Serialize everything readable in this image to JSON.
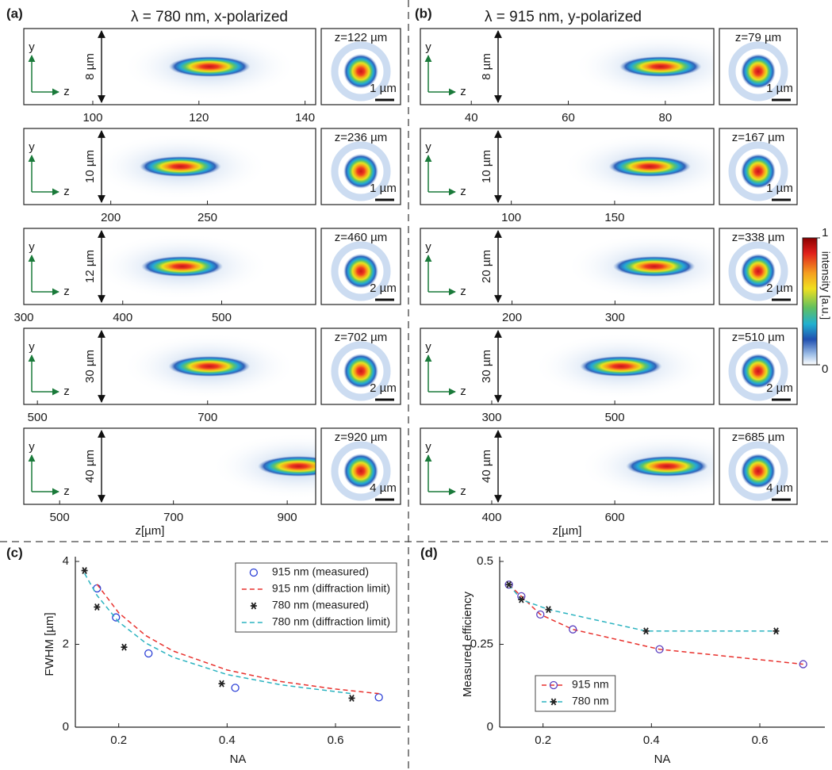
{
  "chart_data": [
    {
      "type": "beam-profile",
      "panel": "(a)",
      "title": "λ = 780 nm, x-polarized",
      "xlabel": "z[µm]",
      "axes_icon": [
        "y",
        "z"
      ],
      "rows": [
        {
          "xlim": [
            87,
            142
          ],
          "xticks": [
            100,
            120,
            140
          ],
          "ylabel": "8 µm",
          "peak": {
            "value": 122,
            "label": "z=122 µm"
          },
          "scalebar": "1 µm"
        },
        {
          "xlim": [
            155,
            306
          ],
          "xticks": [
            200,
            250
          ],
          "ylabel": "10 µm",
          "peak": {
            "value": 236,
            "label": "z=236 µm"
          },
          "scalebar": "1 µm"
        },
        {
          "xlim": [
            300,
            595
          ],
          "xticks": [
            300,
            400,
            500
          ],
          "ylabel": "12 µm",
          "peak": {
            "value": 460,
            "label": "z=460 µm"
          },
          "scalebar": "2 µm"
        },
        {
          "xlim": [
            484,
            827
          ],
          "xticks": [
            500,
            700
          ],
          "ylabel": "30 µm",
          "peak": {
            "value": 702,
            "label": "z=702 µm"
          },
          "scalebar": "2 µm"
        },
        {
          "xlim": [
            437,
            950
          ],
          "xticks": [
            500,
            700,
            900
          ],
          "ylabel": "40 µm",
          "peak": {
            "value": 920,
            "label": "z=920 µm"
          },
          "scalebar": "4 µm"
        }
      ]
    },
    {
      "type": "beam-profile",
      "panel": "(b)",
      "title": "λ = 915 nm, y-polarized",
      "xlabel": "z[µm]",
      "axes_icon": [
        "y",
        "z"
      ],
      "rows": [
        {
          "xlim": [
            29.5,
            90
          ],
          "xticks": [
            40,
            60,
            80
          ],
          "ylabel": "8 µm",
          "peak": {
            "value": 79,
            "label": "z=79 µm"
          },
          "scalebar": "1 µm"
        },
        {
          "xlim": [
            56,
            198
          ],
          "xticks": [
            100,
            150
          ],
          "ylabel": "10 µm",
          "peak": {
            "value": 167,
            "label": "z=167 µm"
          },
          "scalebar": "1 µm"
        },
        {
          "xlim": [
            111,
            396
          ],
          "xticks": [
            200,
            300
          ],
          "ylabel": "20 µm",
          "peak": {
            "value": 338,
            "label": "z=338 µm"
          },
          "scalebar": "2 µm"
        },
        {
          "xlim": [
            184,
            661
          ],
          "xticks": [
            300,
            500
          ],
          "ylabel": "30 µm",
          "peak": {
            "value": 510,
            "label": "z=510 µm"
          },
          "scalebar": "2 µm"
        },
        {
          "xlim": [
            284,
            761
          ],
          "xticks": [
            400,
            600
          ],
          "ylabel": "40 µm",
          "peak": {
            "value": 685,
            "label": "z=685 µm"
          },
          "scalebar": "4 µm"
        }
      ],
      "colorbar": {
        "label": "intensity [a.u.]",
        "lim": [
          0,
          1
        ],
        "ticks": [
          0,
          1
        ]
      }
    },
    {
      "type": "scatter-line",
      "panel": "(c)",
      "xlabel": "NA",
      "ylabel": "FWHM [µm]",
      "xlim": [
        0.12,
        0.72
      ],
      "ylim": [
        0,
        4
      ],
      "xticks": [
        0.2,
        0.4,
        0.6
      ],
      "yticks": [
        0,
        2,
        4
      ],
      "legend": "upper right",
      "series": [
        {
          "name": "915 nm (measured)",
          "color": "#2b3fd6",
          "marker": "circle",
          "x": [
            0.16,
            0.195,
            0.255,
            0.415,
            0.68
          ],
          "values": [
            3.35,
            2.65,
            1.78,
            0.95,
            0.72
          ]
        },
        {
          "name": "915 nm (diffraction limit)",
          "color": "#e8312d",
          "dashed": true,
          "x": [
            0.16,
            0.2,
            0.25,
            0.3,
            0.4,
            0.5,
            0.6,
            0.68
          ],
          "values": [
            3.45,
            2.76,
            2.21,
            1.84,
            1.38,
            1.1,
            0.92,
            0.81
          ]
        },
        {
          "name": "780 nm (measured)",
          "color": "#222222",
          "marker": "star",
          "x": [
            0.137,
            0.16,
            0.21,
            0.39,
            0.63
          ],
          "values": [
            3.78,
            2.9,
            1.93,
            1.05,
            0.7
          ]
        },
        {
          "name": "780 nm (diffraction limit)",
          "color": "#2bb3c0",
          "dashed": true,
          "x": [
            0.137,
            0.16,
            0.2,
            0.25,
            0.3,
            0.4,
            0.5,
            0.63
          ],
          "values": [
            3.71,
            3.18,
            2.54,
            2.03,
            1.69,
            1.27,
            1.02,
            0.81
          ]
        }
      ]
    },
    {
      "type": "scatter-line",
      "panel": "(d)",
      "xlabel": "NA",
      "ylabel": "Measured efficiency",
      "xlim": [
        0.12,
        0.72
      ],
      "ylim": [
        0,
        0.5
      ],
      "xticks": [
        0.2,
        0.4,
        0.6
      ],
      "yticks": [
        0,
        0.25,
        0.5
      ],
      "legend": "lower left",
      "series": [
        {
          "name": "915 nm",
          "color": "#e8312d",
          "marker_color": "#5a3fc0",
          "marker": "circle",
          "dashed": true,
          "x": [
            0.137,
            0.16,
            0.195,
            0.255,
            0.415,
            0.68
          ],
          "values": [
            0.43,
            0.395,
            0.34,
            0.295,
            0.235,
            0.19
          ]
        },
        {
          "name": "780 nm",
          "color": "#2bb3c0",
          "marker_color": "#222222",
          "marker": "star",
          "dashed": true,
          "x": [
            0.137,
            0.16,
            0.21,
            0.39,
            0.63
          ],
          "values": [
            0.43,
            0.385,
            0.355,
            0.29,
            0.29
          ]
        }
      ]
    }
  ]
}
